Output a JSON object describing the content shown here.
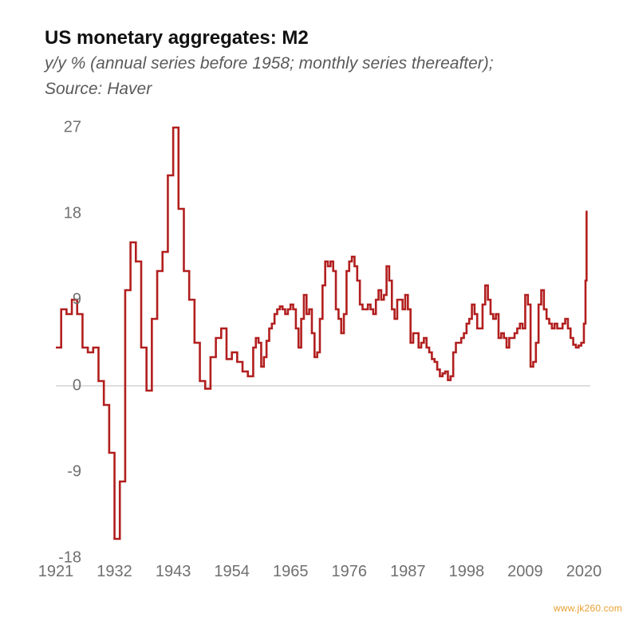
{
  "chart": {
    "type": "line",
    "title": "US monetary aggregates: M2",
    "title_fontsize": 24,
    "title_fontweight": 700,
    "subtitle_line1": "y/y % (annual series before 1958; monthly series thereafter);",
    "subtitle_line2": "Source: Haver",
    "subtitle_fontsize": 21,
    "subtitle_color": "#5a5a5a",
    "background_color": "#ffffff",
    "tick_font_color": "#707070",
    "tick_fontsize": 20,
    "line_color": "#b21e1e",
    "line_width": 2.6,
    "zero_line_color": "#c9c9c9",
    "zero_line_width": 1.2,
    "grid_on": false,
    "xlim": [
      1921,
      2021.2
    ],
    "ylim": [
      -18,
      27
    ],
    "yticks": [
      -18,
      -9,
      0,
      9,
      18,
      27
    ],
    "xticks": [
      1921,
      1932,
      1943,
      1954,
      1965,
      1976,
      1987,
      1998,
      2009,
      2020
    ],
    "watermark": "www.jk260.com",
    "watermark_color": "#e8a030",
    "series": {
      "x": [
        1921,
        1922,
        1923,
        1924,
        1925,
        1926,
        1927,
        1928,
        1929,
        1930,
        1931,
        1932,
        1933,
        1934,
        1935,
        1936,
        1937,
        1938,
        1939,
        1940,
        1941,
        1942,
        1943,
        1944,
        1945,
        1946,
        1947,
        1948,
        1949,
        1950,
        1951,
        1952,
        1953,
        1954,
        1955,
        1956,
        1957,
        1958.0,
        1958.5,
        1959.0,
        1959.5,
        1960.0,
        1960.5,
        1961.0,
        1961.5,
        1962.0,
        1962.5,
        1963.0,
        1963.5,
        1964.0,
        1964.5,
        1965.0,
        1965.5,
        1966.0,
        1966.5,
        1967.0,
        1967.5,
        1968.0,
        1968.5,
        1969.0,
        1969.5,
        1970.0,
        1970.5,
        1971.0,
        1971.5,
        1972.0,
        1972.5,
        1973.0,
        1973.5,
        1974.0,
        1974.5,
        1975.0,
        1975.5,
        1976.0,
        1976.5,
        1977.0,
        1977.5,
        1978.0,
        1978.5,
        1979.0,
        1979.5,
        1980.0,
        1980.5,
        1981.0,
        1981.5,
        1982.0,
        1982.5,
        1983.0,
        1983.5,
        1984.0,
        1984.5,
        1985.0,
        1985.5,
        1986.0,
        1986.5,
        1987.0,
        1987.5,
        1988.0,
        1988.5,
        1989.0,
        1989.5,
        1990.0,
        1990.5,
        1991.0,
        1991.5,
        1992.0,
        1992.5,
        1993.0,
        1993.5,
        1994.0,
        1994.5,
        1995.0,
        1995.5,
        1996.0,
        1996.5,
        1997.0,
        1997.5,
        1998.0,
        1998.5,
        1999.0,
        1999.5,
        2000.0,
        2000.5,
        2001.0,
        2001.5,
        2002.0,
        2002.5,
        2003.0,
        2003.5,
        2004.0,
        2004.5,
        2005.0,
        2005.5,
        2006.0,
        2006.5,
        2007.0,
        2007.5,
        2008.0,
        2008.5,
        2009.0,
        2009.5,
        2010.0,
        2010.5,
        2011.0,
        2011.5,
        2012.0,
        2012.5,
        2013.0,
        2013.5,
        2014.0,
        2014.5,
        2015.0,
        2015.5,
        2016.0,
        2016.5,
        2017.0,
        2017.5,
        2018.0,
        2018.5,
        2019.0,
        2019.5,
        2020.0,
        2020.3,
        2020.5
      ],
      "y": [
        4.0,
        8.0,
        7.5,
        9.0,
        7.5,
        4.0,
        3.5,
        4.0,
        0.5,
        -2.0,
        -7.0,
        -16.0,
        -10.0,
        10.0,
        15.0,
        13.0,
        4.0,
        -0.5,
        7.0,
        12.0,
        14.0,
        22.0,
        27.0,
        18.5,
        12.0,
        9.0,
        4.5,
        0.5,
        -0.3,
        3.0,
        5.0,
        6.0,
        2.8,
        3.5,
        2.5,
        1.5,
        1.0,
        4.0,
        5.0,
        4.5,
        2.0,
        3.0,
        4.7,
        6.0,
        6.5,
        7.5,
        8.0,
        8.3,
        8.0,
        7.5,
        8.0,
        8.5,
        8.0,
        6.0,
        4.0,
        7.0,
        9.5,
        7.5,
        8.0,
        5.5,
        3.0,
        3.5,
        7.0,
        10.5,
        13.0,
        12.5,
        13.0,
        12.0,
        8.0,
        7.0,
        5.5,
        7.5,
        12.0,
        13.0,
        13.5,
        12.5,
        11.0,
        8.5,
        8.0,
        8.0,
        8.5,
        8.0,
        7.5,
        9.0,
        10.0,
        9.0,
        9.5,
        12.5,
        11.0,
        8.0,
        7.0,
        9.0,
        9.0,
        8.0,
        9.5,
        8.0,
        4.5,
        5.5,
        5.5,
        4.0,
        4.5,
        5.0,
        4.0,
        3.5,
        2.8,
        2.5,
        1.7,
        1.0,
        1.3,
        1.5,
        0.6,
        1.0,
        3.5,
        4.5,
        4.5,
        5.0,
        5.5,
        6.5,
        7.0,
        8.5,
        7.5,
        6.0,
        6.0,
        8.5,
        10.5,
        9.0,
        7.5,
        7.0,
        7.5,
        5.0,
        5.5,
        5.0,
        4.0,
        5.0,
        5.0,
        5.5,
        6.0,
        6.5,
        6.0,
        9.5,
        8.5,
        2.0,
        2.5,
        4.5,
        8.5,
        10.0,
        8.0,
        7.0,
        6.5,
        6.0,
        6.5,
        6.0,
        6.0,
        6.5,
        7.0,
        6.0,
        5.0,
        4.3,
        4.0,
        4.2,
        4.5,
        6.5,
        11.0,
        18.3
      ]
    }
  }
}
